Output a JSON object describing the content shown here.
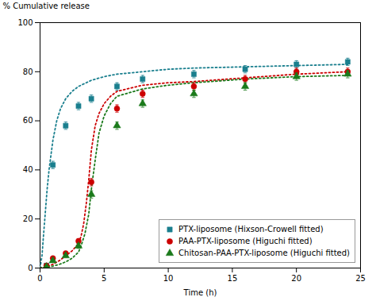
{
  "chart_data": {
    "type": "scatter",
    "xlabel": "Time (h)",
    "ylabel": "% Cumulative release",
    "xlim": [
      0,
      25
    ],
    "ylim": [
      0,
      100
    ],
    "xticks": [
      0,
      5,
      10,
      15,
      20,
      25
    ],
    "yticks": [
      0,
      20,
      40,
      60,
      80,
      100
    ],
    "grid": false,
    "legend": "lower right",
    "series": [
      {
        "type": "line",
        "line_style": "dotted",
        "color": "#1A7F8E",
        "x": [
          0.0,
          0.15,
          0.25,
          0.4,
          0.55,
          0.7,
          0.85,
          1.0,
          1.3,
          1.6,
          2.0,
          2.5,
          3.0,
          4.0,
          5.0,
          6.0,
          8.0,
          10.0,
          12.0,
          16.0,
          20.0,
          24.0
        ],
        "values": [
          0.0,
          5,
          12,
          22,
          32,
          40,
          46,
          52,
          60,
          65,
          69,
          72,
          74,
          76.5,
          78,
          79,
          80,
          81,
          81.5,
          82,
          82.5,
          83
        ]
      },
      {
        "type": "line",
        "line_style": "dotted",
        "color": "#CC0000",
        "x": [
          0.0,
          0.5,
          1.0,
          1.5,
          2.0,
          2.5,
          3.0,
          3.2,
          3.4,
          3.6,
          3.8,
          4.0,
          4.3,
          4.6,
          5.0,
          5.5,
          6.0,
          8.0,
          10.0,
          12.0,
          16.0,
          20.0,
          24.0
        ],
        "values": [
          0.0,
          0.5,
          1.5,
          3.0,
          5.0,
          7.0,
          10.0,
          13.0,
          18.0,
          26.0,
          36.0,
          48.0,
          58.0,
          63.0,
          67.0,
          70.0,
          72.0,
          74.5,
          75.5,
          76.0,
          77.5,
          79.0,
          80.0
        ]
      },
      {
        "type": "line",
        "line_style": "dotted",
        "color": "#1B7A1B",
        "x": [
          0.0,
          0.5,
          1.0,
          1.5,
          2.0,
          2.5,
          3.0,
          3.2,
          3.5,
          3.8,
          4.0,
          4.3,
          4.6,
          5.0,
          5.5,
          6.0,
          8.0,
          10.0,
          12.0,
          16.0,
          20.0,
          24.0
        ],
        "values": [
          0.0,
          0.3,
          0.8,
          1.5,
          2.5,
          4.0,
          6.5,
          9.0,
          14.0,
          22.0,
          32.0,
          44.0,
          55.0,
          62.0,
          67.0,
          70.0,
          73.0,
          74.5,
          75.5,
          77.0,
          78.0,
          78.5
        ]
      },
      {
        "type": "scatter",
        "name": "PTX-liposome (Hixson-Crowell fitted)",
        "marker": "square",
        "color": "#1A7F8E",
        "x": [
          0.5,
          1,
          2,
          3,
          4,
          6,
          8,
          12,
          16,
          20,
          24
        ],
        "values": [
          1,
          42,
          58,
          66,
          69,
          74,
          77,
          79,
          81,
          83,
          84
        ],
        "errors": [
          0.4,
          1.5,
          1.5,
          1.5,
          1.5,
          1.5,
          1.5,
          1.5,
          1.5,
          1.5,
          1.5
        ]
      },
      {
        "type": "scatter",
        "name": "PAA-PTX-liposome (Higuchi fitted)",
        "marker": "circle",
        "color": "#CC0000",
        "x": [
          0.5,
          1,
          2,
          3,
          4,
          6,
          8,
          12,
          16,
          20,
          24
        ],
        "values": [
          1,
          4,
          6,
          11,
          35,
          65,
          71,
          74,
          77,
          80,
          80
        ],
        "errors": [
          0.4,
          0.5,
          0.5,
          1,
          1.5,
          1.5,
          1.5,
          1.5,
          1.5,
          1.5,
          1.5
        ]
      },
      {
        "type": "scatter",
        "name": "Chitosan-PAA-PTX-liposome (Higuchi fitted)",
        "marker": "triangle",
        "color": "#1B7A1B",
        "x": [
          0.5,
          1,
          2,
          3,
          4,
          6,
          8,
          12,
          16,
          20,
          24
        ],
        "values": [
          0.5,
          3,
          5,
          9,
          30,
          58,
          67,
          71,
          74,
          78,
          79
        ],
        "errors": [
          0.4,
          0.5,
          0.5,
          1,
          1.5,
          1.5,
          1.5,
          1.5,
          1.5,
          1.5,
          1.5
        ]
      }
    ]
  }
}
